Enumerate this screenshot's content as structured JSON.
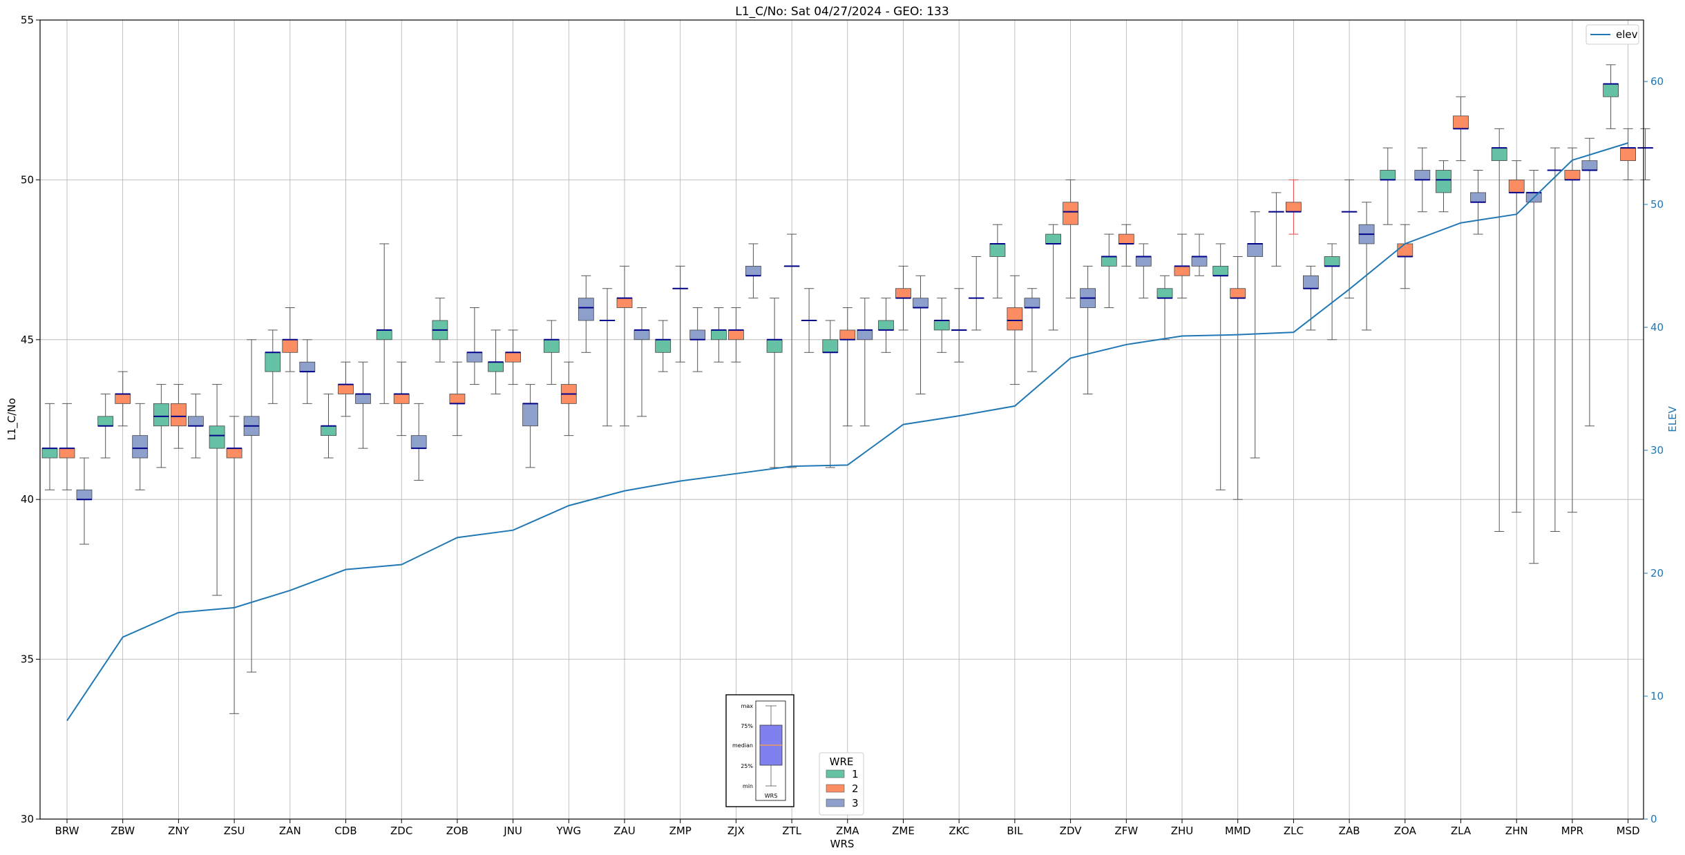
{
  "chart_data": {
    "type": "box",
    "title": "L1_C/No: Sat 04/27/2024 - GEO: 133",
    "xlabel": "WRS",
    "ylabel": "L1_C/No",
    "y2label": "ELEV",
    "ylim": [
      30,
      55
    ],
    "y2lim": [
      0,
      65
    ],
    "yticks": [
      "30",
      "35",
      "40",
      "45",
      "50",
      "55"
    ],
    "y2ticks": [
      "0",
      "10",
      "20",
      "30",
      "40",
      "50",
      "60"
    ],
    "grid": true,
    "categories": [
      "BRW",
      "ZBW",
      "ZNY",
      "ZSU",
      "ZAN",
      "CDB",
      "ZDC",
      "ZOB",
      "JNU",
      "YWG",
      "ZAU",
      "ZMP",
      "ZJX",
      "ZTL",
      "ZMA",
      "ZME",
      "ZKC",
      "BIL",
      "ZDV",
      "ZFW",
      "ZHU",
      "MMD",
      "ZLC",
      "ZAB",
      "ZOA",
      "ZLA",
      "ZHN",
      "MPR",
      "MSD"
    ],
    "wre_colors": {
      "1": "#66c2a5",
      "2": "#fc8d62",
      "3": "#8da0cb"
    },
    "median_color": "#00008b",
    "boxes": [
      {
        "cat": "BRW",
        "wre": 1,
        "min": 40.3,
        "q1": 41.3,
        "median": 41.6,
        "q3": 41.6,
        "max": 43.0
      },
      {
        "cat": "BRW",
        "wre": 2,
        "min": 40.3,
        "q1": 41.3,
        "median": 41.6,
        "q3": 41.6,
        "max": 43.0
      },
      {
        "cat": "BRW",
        "wre": 3,
        "min": 38.6,
        "q1": 40.0,
        "median": 40.0,
        "q3": 40.3,
        "max": 41.3
      },
      {
        "cat": "ZBW",
        "wre": 1,
        "min": 41.3,
        "q1": 42.3,
        "median": 42.3,
        "q3": 42.6,
        "max": 43.3
      },
      {
        "cat": "ZBW",
        "wre": 2,
        "min": 42.3,
        "q1": 43.0,
        "median": 43.3,
        "q3": 43.3,
        "max": 44.0
      },
      {
        "cat": "ZBW",
        "wre": 3,
        "min": 40.3,
        "q1": 41.3,
        "median": 41.6,
        "q3": 42.0,
        "max": 43.0
      },
      {
        "cat": "ZNY",
        "wre": 1,
        "min": 41.0,
        "q1": 42.3,
        "median": 42.6,
        "q3": 43.0,
        "max": 43.6
      },
      {
        "cat": "ZNY",
        "wre": 2,
        "min": 41.6,
        "q1": 42.3,
        "median": 42.6,
        "q3": 43.0,
        "max": 43.6
      },
      {
        "cat": "ZNY",
        "wre": 3,
        "min": 41.3,
        "q1": 42.3,
        "median": 42.3,
        "q3": 42.6,
        "max": 43.3
      },
      {
        "cat": "ZSU",
        "wre": 1,
        "min": 37.0,
        "q1": 41.6,
        "median": 42.0,
        "q3": 42.3,
        "max": 43.6
      },
      {
        "cat": "ZSU",
        "wre": 2,
        "min": 33.3,
        "q1": 41.3,
        "median": 41.6,
        "q3": 41.6,
        "max": 42.6
      },
      {
        "cat": "ZSU",
        "wre": 3,
        "min": 34.6,
        "q1": 42.0,
        "median": 42.3,
        "q3": 42.6,
        "max": 45.0
      },
      {
        "cat": "ZAN",
        "wre": 1,
        "min": 43.0,
        "q1": 44.0,
        "median": 44.6,
        "q3": 44.6,
        "max": 45.3
      },
      {
        "cat": "ZAN",
        "wre": 2,
        "min": 44.0,
        "q1": 44.6,
        "median": 45.0,
        "q3": 45.0,
        "max": 46.0
      },
      {
        "cat": "ZAN",
        "wre": 3,
        "min": 43.0,
        "q1": 44.0,
        "median": 44.0,
        "q3": 44.3,
        "max": 45.0
      },
      {
        "cat": "CDB",
        "wre": 1,
        "min": 41.3,
        "q1": 42.0,
        "median": 42.3,
        "q3": 42.3,
        "max": 43.3
      },
      {
        "cat": "CDB",
        "wre": 2,
        "min": 42.6,
        "q1": 43.3,
        "median": 43.6,
        "q3": 43.6,
        "max": 44.3
      },
      {
        "cat": "CDB",
        "wre": 3,
        "min": 41.6,
        "q1": 43.0,
        "median": 43.3,
        "q3": 43.3,
        "max": 44.3
      },
      {
        "cat": "ZDC",
        "wre": 1,
        "min": 43.0,
        "q1": 45.0,
        "median": 45.3,
        "q3": 45.3,
        "max": 48.0
      },
      {
        "cat": "ZDC",
        "wre": 2,
        "min": 42.0,
        "q1": 43.0,
        "median": 43.3,
        "q3": 43.3,
        "max": 44.3
      },
      {
        "cat": "ZDC",
        "wre": 3,
        "min": 40.6,
        "q1": 41.6,
        "median": 41.6,
        "q3": 42.0,
        "max": 43.0
      },
      {
        "cat": "ZOB",
        "wre": 1,
        "min": 44.3,
        "q1": 45.0,
        "median": 45.3,
        "q3": 45.6,
        "max": 46.3
      },
      {
        "cat": "ZOB",
        "wre": 2,
        "min": 42.0,
        "q1": 43.0,
        "median": 43.0,
        "q3": 43.3,
        "max": 44.3
      },
      {
        "cat": "ZOB",
        "wre": 3,
        "min": 43.6,
        "q1": 44.3,
        "median": 44.6,
        "q3": 44.6,
        "max": 46.0
      },
      {
        "cat": "JNU",
        "wre": 1,
        "min": 43.3,
        "q1": 44.0,
        "median": 44.3,
        "q3": 44.3,
        "max": 45.3
      },
      {
        "cat": "JNU",
        "wre": 2,
        "min": 43.6,
        "q1": 44.3,
        "median": 44.6,
        "q3": 44.6,
        "max": 45.3
      },
      {
        "cat": "JNU",
        "wre": 3,
        "min": 41.0,
        "q1": 42.3,
        "median": 43.0,
        "q3": 43.0,
        "max": 43.6
      },
      {
        "cat": "YWG",
        "wre": 1,
        "min": 43.6,
        "q1": 44.6,
        "median": 45.0,
        "q3": 45.0,
        "max": 45.6
      },
      {
        "cat": "YWG",
        "wre": 2,
        "min": 42.0,
        "q1": 43.0,
        "median": 43.3,
        "q3": 43.6,
        "max": 44.3
      },
      {
        "cat": "YWG",
        "wre": 3,
        "min": 44.6,
        "q1": 45.6,
        "median": 46.0,
        "q3": 46.3,
        "max": 47.0
      },
      {
        "cat": "ZAU",
        "wre": 1,
        "min": 42.3,
        "q1": 45.6,
        "median": 45.6,
        "q3": 45.6,
        "max": 46.6
      },
      {
        "cat": "ZAU",
        "wre": 2,
        "min": 42.3,
        "q1": 46.0,
        "median": 46.3,
        "q3": 46.3,
        "max": 47.3
      },
      {
        "cat": "ZAU",
        "wre": 3,
        "min": 42.6,
        "q1": 45.0,
        "median": 45.3,
        "q3": 45.3,
        "max": 46.0
      },
      {
        "cat": "ZMP",
        "wre": 1,
        "min": 44.0,
        "q1": 44.6,
        "median": 45.0,
        "q3": 45.0,
        "max": 45.6
      },
      {
        "cat": "ZMP",
        "wre": 2,
        "min": 44.3,
        "q1": 46.6,
        "median": 46.6,
        "q3": 46.6,
        "max": 47.3
      },
      {
        "cat": "ZMP",
        "wre": 3,
        "min": 44.0,
        "q1": 45.0,
        "median": 45.0,
        "q3": 45.3,
        "max": 46.0
      },
      {
        "cat": "ZJX",
        "wre": 1,
        "min": 44.3,
        "q1": 45.0,
        "median": 45.3,
        "q3": 45.3,
        "max": 46.0
      },
      {
        "cat": "ZJX",
        "wre": 2,
        "min": 44.3,
        "q1": 45.0,
        "median": 45.3,
        "q3": 45.3,
        "max": 46.0
      },
      {
        "cat": "ZJX",
        "wre": 3,
        "min": 46.3,
        "q1": 47.0,
        "median": 47.0,
        "q3": 47.3,
        "max": 48.0
      },
      {
        "cat": "ZTL",
        "wre": 1,
        "min": 41.0,
        "q1": 44.6,
        "median": 45.0,
        "q3": 45.0,
        "max": 46.3
      },
      {
        "cat": "ZTL",
        "wre": 2,
        "min": 41.0,
        "q1": 47.3,
        "median": 47.3,
        "q3": 47.3,
        "max": 48.3
      },
      {
        "cat": "ZTL",
        "wre": 3,
        "min": 44.6,
        "q1": 45.6,
        "median": 45.6,
        "q3": 45.6,
        "max": 46.6
      },
      {
        "cat": "ZMA",
        "wre": 1,
        "min": 41.0,
        "q1": 44.6,
        "median": 44.6,
        "q3": 45.0,
        "max": 45.6
      },
      {
        "cat": "ZMA",
        "wre": 2,
        "min": 42.3,
        "q1": 45.0,
        "median": 45.0,
        "q3": 45.3,
        "max": 46.0
      },
      {
        "cat": "ZMA",
        "wre": 3,
        "min": 42.3,
        "q1": 45.0,
        "median": 45.3,
        "q3": 45.3,
        "max": 46.3
      },
      {
        "cat": "ZME",
        "wre": 1,
        "min": 44.6,
        "q1": 45.3,
        "median": 45.3,
        "q3": 45.6,
        "max": 46.3
      },
      {
        "cat": "ZME",
        "wre": 2,
        "min": 45.3,
        "q1": 46.3,
        "median": 46.3,
        "q3": 46.6,
        "max": 47.3
      },
      {
        "cat": "ZME",
        "wre": 3,
        "min": 43.3,
        "q1": 46.0,
        "median": 46.0,
        "q3": 46.3,
        "max": 47.0
      },
      {
        "cat": "ZKC",
        "wre": 1,
        "min": 44.6,
        "q1": 45.3,
        "median": 45.6,
        "q3": 45.6,
        "max": 46.3
      },
      {
        "cat": "ZKC",
        "wre": 2,
        "min": 44.3,
        "q1": 45.3,
        "median": 45.3,
        "q3": 45.3,
        "max": 46.6
      },
      {
        "cat": "ZKC",
        "wre": 3,
        "min": 45.3,
        "q1": 46.3,
        "median": 46.3,
        "q3": 46.3,
        "max": 47.6
      },
      {
        "cat": "BIL",
        "wre": 1,
        "min": 46.3,
        "q1": 47.6,
        "median": 48.0,
        "q3": 48.0,
        "max": 48.6
      },
      {
        "cat": "BIL",
        "wre": 2,
        "min": 43.6,
        "q1": 45.3,
        "median": 45.6,
        "q3": 46.0,
        "max": 47.0
      },
      {
        "cat": "BIL",
        "wre": 3,
        "min": 44.0,
        "q1": 46.0,
        "median": 46.0,
        "q3": 46.3,
        "max": 46.6
      },
      {
        "cat": "ZDV",
        "wre": 1,
        "min": 45.3,
        "q1": 48.0,
        "median": 48.0,
        "q3": 48.3,
        "max": 48.6
      },
      {
        "cat": "ZDV",
        "wre": 2,
        "min": 46.3,
        "q1": 48.6,
        "median": 49.0,
        "q3": 49.3,
        "max": 50.0
      },
      {
        "cat": "ZDV",
        "wre": 3,
        "min": 43.3,
        "q1": 46.0,
        "median": 46.3,
        "q3": 46.6,
        "max": 47.3
      },
      {
        "cat": "ZFW",
        "wre": 1,
        "min": 46.0,
        "q1": 47.3,
        "median": 47.6,
        "q3": 47.6,
        "max": 48.3
      },
      {
        "cat": "ZFW",
        "wre": 2,
        "min": 47.3,
        "q1": 48.0,
        "median": 48.0,
        "q3": 48.3,
        "max": 48.6
      },
      {
        "cat": "ZFW",
        "wre": 3,
        "min": 46.3,
        "q1": 47.3,
        "median": 47.6,
        "q3": 47.6,
        "max": 48.0
      },
      {
        "cat": "ZHU",
        "wre": 1,
        "min": 45.0,
        "q1": 46.3,
        "median": 46.3,
        "q3": 46.6,
        "max": 47.0
      },
      {
        "cat": "ZHU",
        "wre": 2,
        "min": 46.3,
        "q1": 47.0,
        "median": 47.3,
        "q3": 47.3,
        "max": 48.3
      },
      {
        "cat": "ZHU",
        "wre": 3,
        "min": 47.0,
        "q1": 47.3,
        "median": 47.6,
        "q3": 47.6,
        "max": 48.3
      },
      {
        "cat": "MMD",
        "wre": 1,
        "min": 40.3,
        "q1": 47.0,
        "median": 47.0,
        "q3": 47.3,
        "max": 48.0
      },
      {
        "cat": "MMD",
        "wre": 2,
        "min": 40.0,
        "q1": 46.3,
        "median": 46.3,
        "q3": 46.6,
        "max": 47.6
      },
      {
        "cat": "MMD",
        "wre": 3,
        "min": 41.3,
        "q1": 47.6,
        "median": 48.0,
        "q3": 48.0,
        "max": 49.0
      },
      {
        "cat": "ZLC",
        "wre": 1,
        "min": 47.3,
        "q1": 49.0,
        "median": 49.0,
        "q3": 49.0,
        "max": 49.6
      },
      {
        "cat": "ZLC",
        "wre": 2,
        "min": 48.3,
        "q1": 49.0,
        "median": 49.0,
        "q3": 49.3,
        "max": 50.0
      },
      {
        "cat": "ZLC",
        "wre": 3,
        "min": 45.3,
        "q1": 46.6,
        "median": 46.6,
        "q3": 47.0,
        "max": 47.3
      },
      {
        "cat": "ZAB",
        "wre": 1,
        "min": 45.0,
        "q1": 47.3,
        "median": 47.3,
        "q3": 47.6,
        "max": 48.0
      },
      {
        "cat": "ZAB",
        "wre": 2,
        "min": 46.3,
        "q1": 49.0,
        "median": 49.0,
        "q3": 49.0,
        "max": 50.0
      },
      {
        "cat": "ZAB",
        "wre": 3,
        "min": 45.3,
        "q1": 48.0,
        "median": 48.3,
        "q3": 48.6,
        "max": 49.3
      },
      {
        "cat": "ZOA",
        "wre": 1,
        "min": 48.6,
        "q1": 50.0,
        "median": 50.0,
        "q3": 50.3,
        "max": 51.0
      },
      {
        "cat": "ZOA",
        "wre": 2,
        "min": 46.6,
        "q1": 47.6,
        "median": 47.6,
        "q3": 48.0,
        "max": 48.6
      },
      {
        "cat": "ZOA",
        "wre": 3,
        "min": 49.0,
        "q1": 50.0,
        "median": 50.0,
        "q3": 50.3,
        "max": 51.0
      },
      {
        "cat": "ZLA",
        "wre": 1,
        "min": 49.0,
        "q1": 49.6,
        "median": 50.0,
        "q3": 50.3,
        "max": 50.6
      },
      {
        "cat": "ZLA",
        "wre": 2,
        "min": 50.6,
        "q1": 51.6,
        "median": 51.6,
        "q3": 52.0,
        "max": 52.6
      },
      {
        "cat": "ZLA",
        "wre": 3,
        "min": 48.3,
        "q1": 49.3,
        "median": 49.3,
        "q3": 49.6,
        "max": 50.3
      },
      {
        "cat": "ZHN",
        "wre": 1,
        "min": 39.0,
        "q1": 50.6,
        "median": 51.0,
        "q3": 51.0,
        "max": 51.6
      },
      {
        "cat": "ZHN",
        "wre": 2,
        "min": 39.6,
        "q1": 49.6,
        "median": 49.6,
        "q3": 50.0,
        "max": 50.6
      },
      {
        "cat": "ZHN",
        "wre": 3,
        "min": 38.0,
        "q1": 49.3,
        "median": 49.6,
        "q3": 49.6,
        "max": 50.3
      },
      {
        "cat": "MPR",
        "wre": 1,
        "min": 39.0,
        "q1": 50.3,
        "median": 50.3,
        "q3": 50.3,
        "max": 51.0
      },
      {
        "cat": "MPR",
        "wre": 2,
        "min": 39.6,
        "q1": 50.0,
        "median": 50.0,
        "q3": 50.3,
        "max": 51.0
      },
      {
        "cat": "MPR",
        "wre": 3,
        "min": 42.3,
        "q1": 50.3,
        "median": 50.3,
        "q3": 50.6,
        "max": 51.3
      },
      {
        "cat": "MSD",
        "wre": 1,
        "min": 51.6,
        "q1": 52.6,
        "median": 53.0,
        "q3": 53.0,
        "max": 53.6
      },
      {
        "cat": "MSD",
        "wre": 2,
        "min": 50.0,
        "q1": 50.6,
        "median": 51.0,
        "q3": 51.0,
        "max": 51.6
      },
      {
        "cat": "MSD",
        "wre": 3,
        "min": 50.0,
        "q1": 51.0,
        "median": 51.0,
        "q3": 51.0,
        "max": 51.6
      }
    ],
    "elev_series": {
      "name": "elev",
      "color": "#1f77b4",
      "values": [
        8.0,
        14.8,
        16.8,
        17.2,
        18.6,
        20.3,
        20.7,
        22.9,
        23.5,
        25.5,
        26.7,
        27.5,
        28.1,
        28.7,
        28.8,
        32.1,
        32.8,
        33.6,
        37.5,
        38.6,
        39.3,
        39.4,
        39.6,
        43.1,
        46.8,
        48.5,
        49.2,
        53.6,
        55.0
      ]
    },
    "legend_wre": {
      "title": "WRE",
      "entries": [
        "1",
        "2",
        "3"
      ],
      "placement": "bottom-center"
    },
    "legend_elev": {
      "placement": "top-right"
    },
    "key_inset": {
      "labels": [
        "max",
        "75%",
        "median",
        "25%",
        "min"
      ],
      "xlabel": "WRS"
    }
  }
}
